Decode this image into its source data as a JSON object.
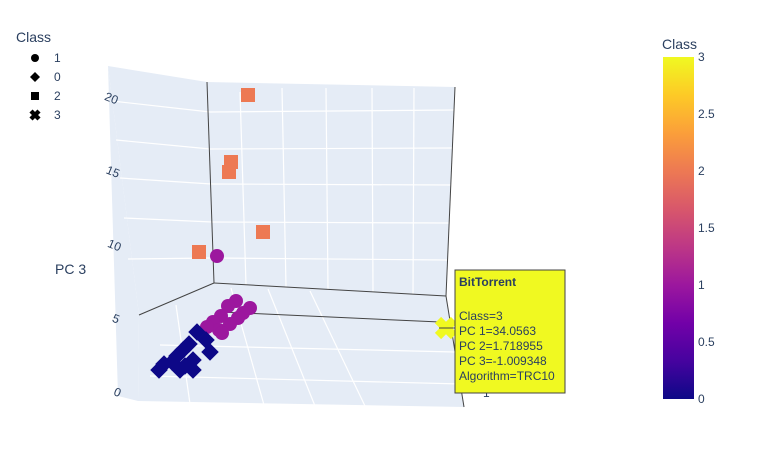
{
  "chart_data": {
    "type": "scatter3d",
    "axes": {
      "z": {
        "title": "PC 3",
        "ticks": [
          "0",
          "5",
          "10",
          "15",
          "20"
        ]
      },
      "y_partial_tick": "1"
    },
    "legend": {
      "title": "Class",
      "placement": "top-left",
      "items": [
        {
          "label": "1",
          "symbol": "circle"
        },
        {
          "label": "0",
          "symbol": "diamond"
        },
        {
          "label": "2",
          "symbol": "square"
        },
        {
          "label": "3",
          "symbol": "x"
        }
      ]
    },
    "colorbar": {
      "title": "Class",
      "range": [
        0,
        3
      ],
      "ticks": [
        "0",
        "0.5",
        "1",
        "1.5",
        "2",
        "2.5",
        "3"
      ],
      "colors": [
        "#0d0887",
        "#46039f",
        "#7201a8",
        "#9c179e",
        "#bd3786",
        "#d8576b",
        "#ed7953",
        "#fb9f3a",
        "#fdca26",
        "#f0f921"
      ]
    },
    "class_colors": {
      "0": "#0d0887",
      "1": "#9c179e",
      "2": "#ed7953",
      "3": "#f0f921"
    },
    "points": [
      {
        "class": 2,
        "symbol": "square",
        "pc3": 20.6
      },
      {
        "class": 2,
        "symbol": "square",
        "pc3": 16.3
      },
      {
        "class": 2,
        "symbol": "square",
        "pc3": 15.8
      },
      {
        "class": 2,
        "symbol": "square",
        "pc3": 11.6
      },
      {
        "class": 2,
        "symbol": "square",
        "pc3": 10.0
      },
      {
        "class": 1,
        "symbol": "circle",
        "pc3": 9.9
      },
      {
        "class": 1,
        "symbol": "circle",
        "pc3": 5.6
      },
      {
        "class": 1,
        "symbol": "circle",
        "pc3": 5.4
      },
      {
        "class": 1,
        "symbol": "circle",
        "pc3": 5.2
      },
      {
        "class": 1,
        "symbol": "circle",
        "pc3": 5.0
      },
      {
        "class": 1,
        "symbol": "circle",
        "pc3": 4.9
      },
      {
        "class": 1,
        "symbol": "circle",
        "pc3": 4.7
      },
      {
        "class": 1,
        "symbol": "circle",
        "pc3": 4.5
      },
      {
        "class": 1,
        "symbol": "circle",
        "pc3": 4.3
      },
      {
        "class": 1,
        "symbol": "circle",
        "pc3": 4.1
      },
      {
        "class": 1,
        "symbol": "circle",
        "pc3": 3.9
      },
      {
        "class": 1,
        "symbol": "circle",
        "pc3": 3.7
      },
      {
        "class": 0,
        "symbol": "diamond",
        "pc3": 3.4
      },
      {
        "class": 0,
        "symbol": "diamond",
        "pc3": 3.1
      },
      {
        "class": 0,
        "symbol": "diamond",
        "pc3": 2.8
      },
      {
        "class": 0,
        "symbol": "diamond",
        "pc3": 2.6
      },
      {
        "class": 0,
        "symbol": "diamond",
        "pc3": 2.3
      },
      {
        "class": 0,
        "symbol": "diamond",
        "pc3": 2.0
      },
      {
        "class": 0,
        "symbol": "diamond",
        "pc3": 1.8
      },
      {
        "class": 0,
        "symbol": "diamond",
        "pc3": 1.5
      },
      {
        "class": 0,
        "symbol": "diamond",
        "pc3": 1.3
      },
      {
        "class": 0,
        "symbol": "diamond",
        "pc3": 1.1
      },
      {
        "class": 0,
        "symbol": "diamond",
        "pc3": 0.9
      },
      {
        "class": 0,
        "symbol": "diamond",
        "pc3": 0.7
      },
      {
        "class": 0,
        "symbol": "diamond",
        "pc3": 0.5
      },
      {
        "class": 3,
        "symbol": "x",
        "pc3": -1.009348
      }
    ],
    "hover": {
      "title": "BitTorrent",
      "lines": [
        "Class=3",
        "PC 1=34.0563",
        "PC 2=1.718955",
        "PC 3=-1.009348",
        "Algorithm=TRC10"
      ],
      "background": "#f0f921"
    }
  }
}
